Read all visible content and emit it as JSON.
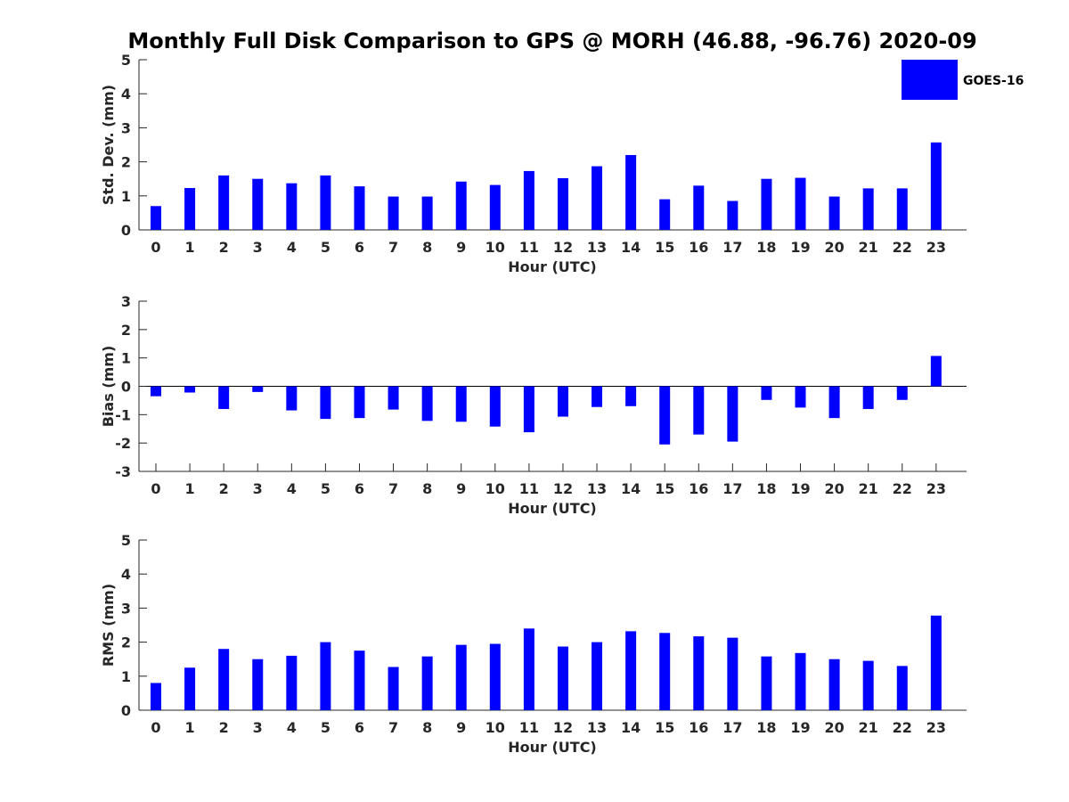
{
  "title": "Monthly Full Disk Comparison to GPS @ MORH (46.88, -96.76) 2020-09",
  "legend": {
    "label": "GOES-16",
    "color": "#0000ff"
  },
  "chart_data": [
    {
      "type": "bar",
      "categories": [
        "0",
        "1",
        "2",
        "3",
        "4",
        "5",
        "6",
        "7",
        "8",
        "9",
        "10",
        "11",
        "12",
        "13",
        "14",
        "15",
        "16",
        "17",
        "18",
        "19",
        "20",
        "21",
        "22",
        "23"
      ],
      "series": [
        {
          "name": "GOES-16",
          "values": [
            0.7,
            1.23,
            1.6,
            1.5,
            1.37,
            1.6,
            1.28,
            0.98,
            0.98,
            1.42,
            1.32,
            1.73,
            1.52,
            1.87,
            2.2,
            0.9,
            1.3,
            0.85,
            1.5,
            1.53,
            0.98,
            1.22,
            1.22,
            2.57
          ]
        }
      ],
      "xlabel": "Hour (UTC)",
      "ylabel": "Std. Dev. (mm)",
      "ylim": [
        0,
        5
      ],
      "yticks": [
        "0",
        "1",
        "2",
        "3",
        "4",
        "5"
      ],
      "legend_position": "top-right",
      "grid": false
    },
    {
      "type": "bar",
      "categories": [
        "0",
        "1",
        "2",
        "3",
        "4",
        "5",
        "6",
        "7",
        "8",
        "9",
        "10",
        "11",
        "12",
        "13",
        "14",
        "15",
        "16",
        "17",
        "18",
        "19",
        "20",
        "21",
        "22",
        "23"
      ],
      "series": [
        {
          "name": "GOES-16",
          "values": [
            -0.35,
            -0.22,
            -0.8,
            -0.2,
            -0.85,
            -1.15,
            -1.12,
            -0.82,
            -1.22,
            -1.25,
            -1.42,
            -1.62,
            -1.07,
            -0.73,
            -0.7,
            -2.05,
            -1.7,
            -1.95,
            -0.48,
            -0.75,
            -1.12,
            -0.8,
            -0.48,
            1.07
          ]
        }
      ],
      "xlabel": "Hour (UTC)",
      "ylabel": "Bias (mm)",
      "ylim": [
        -3,
        3
      ],
      "yticks": [
        "-3",
        "-2",
        "-1",
        "0",
        "1",
        "2",
        "3"
      ],
      "grid": false
    },
    {
      "type": "bar",
      "categories": [
        "0",
        "1",
        "2",
        "3",
        "4",
        "5",
        "6",
        "7",
        "8",
        "9",
        "10",
        "11",
        "12",
        "13",
        "14",
        "15",
        "16",
        "17",
        "18",
        "19",
        "20",
        "21",
        "22",
        "23"
      ],
      "series": [
        {
          "name": "GOES-16",
          "values": [
            0.8,
            1.25,
            1.8,
            1.5,
            1.6,
            2.0,
            1.75,
            1.27,
            1.58,
            1.92,
            1.95,
            2.4,
            1.87,
            2.0,
            2.32,
            2.27,
            2.17,
            2.13,
            1.58,
            1.68,
            1.5,
            1.45,
            1.3,
            2.78
          ]
        }
      ],
      "xlabel": "Hour (UTC)",
      "ylabel": "RMS (mm)",
      "ylim": [
        0,
        5
      ],
      "yticks": [
        "0",
        "1",
        "2",
        "3",
        "4",
        "5"
      ],
      "grid": false
    }
  ]
}
